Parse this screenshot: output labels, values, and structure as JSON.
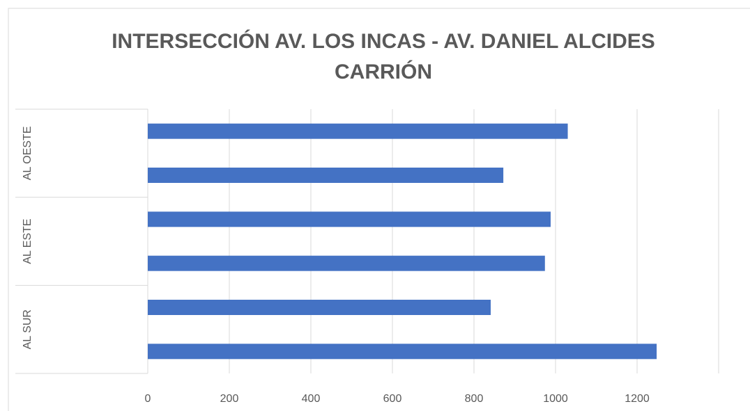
{
  "chart_data": {
    "type": "bar",
    "orientation": "horizontal",
    "title": "INTERSECCIÓN AV. LOS INCAS - AV. DANIEL ALCIDES CARRIÓN",
    "groups": [
      "AL OESTE",
      "AL ESTE",
      "AL SUR"
    ],
    "categories": [
      null,
      null,
      null,
      null,
      null,
      null
    ],
    "values": [
      1030,
      872,
      988,
      974,
      841,
      1248
    ],
    "color": "#4472c4",
    "xlim": [
      0,
      1400
    ],
    "xticks": [
      0,
      200,
      400,
      600,
      800,
      1000,
      1200
    ],
    "grid": true
  }
}
